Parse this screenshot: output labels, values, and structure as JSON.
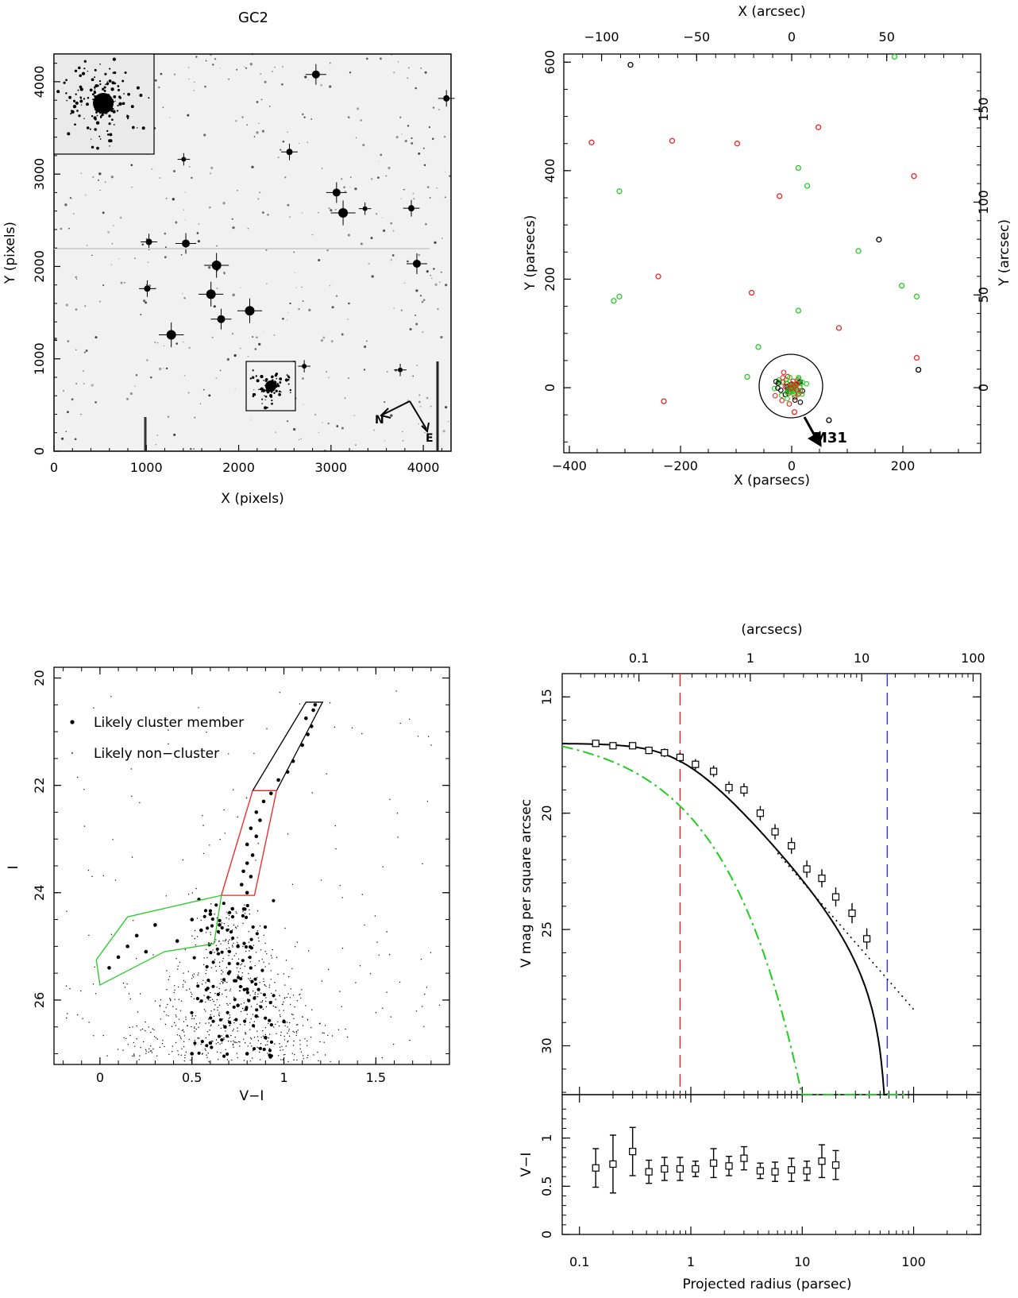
{
  "colors": {
    "member": "#000000",
    "red": "#ee2222",
    "green": "#22cc22",
    "blue": "#3333dd",
    "image_bg": "#f1f1f1"
  },
  "panel_image": {
    "title": "GC2",
    "xlabel": "X (pixels)",
    "ylabel": "Y (pixels)",
    "xticks": [
      "0",
      "1000",
      "2000",
      "3000",
      "4000"
    ],
    "yticks": [
      "0",
      "1000",
      "2000",
      "3000",
      "4000"
    ],
    "compass_n": "N",
    "compass_e": "E"
  },
  "panel_positions": {
    "xlabel_bottom": "X (parsecs)",
    "xlabel_top": "X (arcsec)",
    "ylabel_left": "Y (parsecs)",
    "ylabel_right": "Y (arcsec)",
    "xticks_bottom": [
      "−400",
      "−200",
      "0",
      "200"
    ],
    "xticks_top": [
      "−100",
      "−50",
      "0",
      "50"
    ],
    "yticks_left": [
      "0",
      "200",
      "400",
      "600"
    ],
    "yticks_right": [
      "0",
      "50",
      "100",
      "150"
    ],
    "arrow_label": "M31"
  },
  "panel_cmd": {
    "xlabel": "V−I",
    "ylabel": "I",
    "xticks": [
      "0",
      "0.5",
      "1",
      "1.5"
    ],
    "yticks": [
      "20",
      "22",
      "24",
      "26"
    ],
    "legend_member": "Likely cluster member",
    "legend_nonmember": "Likely non−cluster"
  },
  "panel_profile": {
    "top_axis_label": "(arcsecs)",
    "top_ticks": [
      "0.1",
      "1",
      "10",
      "100"
    ],
    "ylabel": "V mag per square arcsec",
    "yticks": [
      "15",
      "20",
      "25",
      "30"
    ],
    "color_ylabel": "V−I",
    "color_yticks": [
      "0",
      "0.5",
      "1"
    ],
    "xticks": [
      "0.1",
      "1",
      "10",
      "100"
    ],
    "xlabel": "Projected radius (parsec)"
  },
  "chart_data": [
    {
      "type": "scatter",
      "title": "GC2",
      "xlabel": "X (parsecs)",
      "ylabel": "Y (parsecs)",
      "xlim": [
        -410,
        340
      ],
      "ylim": [
        -120,
        615
      ],
      "series": [
        {
          "name": "",
          "color": "red",
          "points": [
            [
              -360,
              452
            ],
            [
              -215,
              455
            ],
            [
              -98,
              450
            ],
            [
              48,
              480
            ],
            [
              220,
              390
            ],
            [
              -22,
              353
            ],
            [
              -240,
              205
            ],
            [
              -72,
              175
            ],
            [
              85,
              110
            ],
            [
              -230,
              -25
            ],
            [
              225,
              55
            ],
            [
              5,
              -45
            ]
          ]
        },
        {
          "name": "",
          "color": "green",
          "points": [
            [
              185,
              610
            ],
            [
              -310,
              362
            ],
            [
              12,
              405
            ],
            [
              28,
              372
            ],
            [
              -320,
              160
            ],
            [
              -310,
              168
            ],
            [
              120,
              252
            ],
            [
              198,
              188
            ],
            [
              225,
              168
            ],
            [
              12,
              142
            ],
            [
              -60,
              75
            ],
            [
              -80,
              20
            ]
          ]
        },
        {
          "name": "",
          "color": "black",
          "points": [
            [
              -290,
              595
            ],
            [
              157,
              273
            ],
            [
              228,
              33
            ],
            [
              67,
              -60
            ]
          ]
        }
      ]
    },
    {
      "type": "scatter",
      "xlabel": "V−I",
      "ylabel": "I",
      "xlim": [
        -0.25,
        1.9
      ],
      "ylim": [
        27.2,
        19.8
      ],
      "series": [
        {
          "name": "Likely cluster member",
          "points": [
            [
              1.17,
              20.5
            ],
            [
              1.16,
              20.6
            ],
            [
              1.12,
              20.75
            ],
            [
              1.15,
              20.9
            ],
            [
              1.13,
              21.05
            ],
            [
              1.1,
              21.25
            ],
            [
              1.05,
              21.55
            ],
            [
              1.02,
              21.75
            ],
            [
              0.97,
              21.9
            ],
            [
              0.93,
              22.15
            ],
            [
              0.89,
              22.3
            ],
            [
              0.85,
              22.5
            ],
            [
              0.87,
              22.65
            ],
            [
              0.82,
              22.8
            ],
            [
              0.85,
              22.95
            ],
            [
              0.8,
              23.1
            ],
            [
              0.83,
              23.3
            ],
            [
              0.8,
              23.45
            ],
            [
              0.78,
              23.6
            ],
            [
              0.82,
              23.7
            ],
            [
              0.77,
              23.85
            ],
            [
              0.8,
              24.0
            ],
            [
              0.72,
              24.3
            ],
            [
              0.6,
              24.4
            ],
            [
              0.5,
              24.5
            ],
            [
              0.3,
              24.6
            ],
            [
              0.2,
              24.8
            ],
            [
              0.15,
              25.0
            ],
            [
              0.1,
              25.2
            ],
            [
              0.05,
              25.4
            ],
            [
              0.25,
              25.1
            ],
            [
              0.42,
              24.9
            ],
            [
              0.55,
              24.7
            ],
            [
              0.65,
              24.6
            ],
            [
              0.75,
              25.0
            ],
            [
              0.7,
              25.5
            ],
            [
              0.8,
              25.8
            ],
            [
              0.75,
              26.1
            ],
            [
              0.68,
              26.5
            ],
            [
              0.85,
              26.3
            ],
            [
              0.9,
              26.7
            ],
            [
              0.6,
              26.8
            ],
            [
              0.5,
              27.0
            ],
            [
              0.8,
              27.0
            ],
            [
              1.0,
              26.4
            ]
          ]
        }
      ]
    },
    {
      "type": "line",
      "xlabel": "Projected radius (parsec)",
      "ylabel": "V mag per square arcsec",
      "xscale": "log",
      "xlim": [
        0.07,
        400
      ],
      "ylim": [
        32.1,
        14.0
      ],
      "series": [
        {
          "name": "",
          "x": [
            0.14,
            0.2,
            0.3,
            0.42,
            0.58,
            0.8,
            1.1,
            1.6,
            2.2,
            3.0,
            4.2,
            5.7,
            8.0,
            11.0,
            15.0,
            20.0,
            28.0,
            38.0
          ],
          "y": [
            17.0,
            17.1,
            17.1,
            17.3,
            17.4,
            17.6,
            17.9,
            18.2,
            18.9,
            19.0,
            20.0,
            20.8,
            21.4,
            22.4,
            22.8,
            23.6,
            24.3,
            25.4
          ]
        },
        {
          "name": "",
          "x": [
            0.14,
            0.2,
            0.3,
            0.42,
            0.58,
            0.8,
            1.1,
            1.6,
            2.2,
            3.0,
            4.2,
            5.7,
            8.0,
            11.0,
            15.0,
            20.0
          ],
          "y": [
            0.69,
            0.73,
            0.86,
            0.65,
            0.68,
            0.68,
            0.68,
            0.74,
            0.71,
            0.79,
            0.66,
            0.65,
            0.67,
            0.66,
            0.76,
            0.72
          ]
        }
      ]
    }
  ]
}
